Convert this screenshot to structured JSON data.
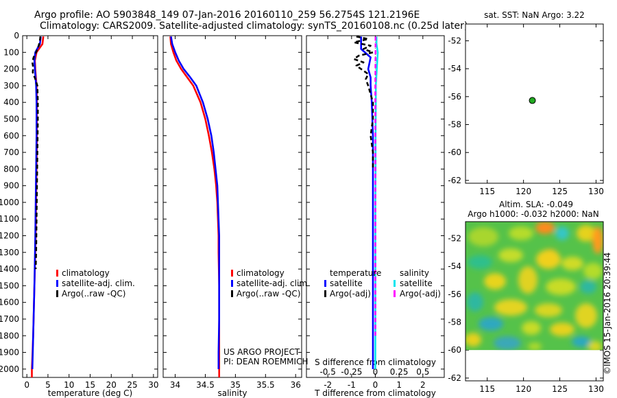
{
  "title": {
    "line1": "Argo profile: AO 5903848_149 07-Jan-2016 20160110_259 56.2754S 121.2196E",
    "line2": "Climatology: CARS2009. Satellite-adjusted climatology: synTS_20160108.nc (0.25d later)"
  },
  "watermark": "©IMOS 15-Jan-2016 20:39:44",
  "project": {
    "line1": "US ARGO PROJECT",
    "line2": "PI: DEAN ROEMMICH"
  },
  "colors": {
    "climatology": "#ff0000",
    "satellite": "#0000ff",
    "argo": "#000000",
    "salinity_satellite": "#00e5ee",
    "salinity_argo": "#ff00ff",
    "station": "#22aa22"
  },
  "depth_axis": {
    "min": 0,
    "max": 2050,
    "ticks": [
      0,
      100,
      200,
      300,
      400,
      500,
      600,
      700,
      800,
      900,
      1000,
      1100,
      1200,
      1300,
      1400,
      1500,
      1600,
      1700,
      1800,
      1900,
      2000
    ]
  },
  "chart_data": [
    {
      "name": "temperature-panel",
      "type": "line",
      "xlabel": "temperature (deg C)",
      "xlim": [
        -1,
        31
      ],
      "xticks": [
        0,
        5,
        10,
        15,
        20,
        25,
        30
      ],
      "ylim": [
        0,
        2050
      ],
      "y_inverted": true,
      "legend": {
        "position": "lower-middle",
        "entries": [
          "climatology",
          "satellite-adj. clim.",
          "Argo(..raw -QC)"
        ]
      },
      "series": [
        {
          "name": "climatology",
          "color_key": "climatology",
          "dash": false,
          "depth": [
            5,
            50,
            100,
            150,
            200,
            300,
            400,
            600,
            800,
            1000,
            1200,
            1500,
            1800,
            2000,
            2050
          ],
          "values": [
            3.9,
            3.7,
            2.3,
            1.9,
            2.0,
            2.3,
            2.4,
            2.4,
            2.3,
            2.2,
            2.1,
            1.8,
            1.5,
            1.2,
            1.2
          ]
        },
        {
          "name": "satellite-adj. clim.",
          "color_key": "satellite",
          "dash": false,
          "depth": [
            5,
            50,
            100,
            150,
            200,
            300,
            400,
            600,
            800,
            1000,
            1200,
            1500,
            1800,
            2000
          ],
          "values": [
            3.3,
            3.1,
            2.0,
            1.8,
            1.9,
            2.2,
            2.3,
            2.3,
            2.2,
            2.1,
            2.0,
            1.8,
            1.5,
            1.3
          ]
        },
        {
          "name": "Argo(..raw -QC)",
          "color_key": "argo",
          "dash": true,
          "depth": [
            5,
            30,
            60,
            100,
            130,
            160,
            190,
            220,
            260,
            300,
            400,
            500,
            700,
            900,
            1100,
            1300,
            1400
          ],
          "values": [
            3.2,
            3.1,
            2.8,
            2.2,
            1.6,
            1.3,
            1.5,
            1.4,
            2.0,
            2.5,
            2.6,
            2.6,
            2.5,
            2.4,
            2.3,
            2.2,
            2.1
          ]
        }
      ]
    },
    {
      "name": "salinity-panel",
      "type": "line",
      "xlabel": "salinity",
      "xlim": [
        33.8,
        36.1
      ],
      "xticks": [
        34,
        34.5,
        35,
        35.5,
        36
      ],
      "ylim": [
        0,
        2050
      ],
      "y_inverted": true,
      "legend": {
        "position": "lower-middle",
        "entries": [
          "climatology",
          "satellite-adj. clim.",
          "Argo(..raw -QC)"
        ]
      },
      "series": [
        {
          "name": "climatology",
          "color_key": "climatology",
          "dash": false,
          "depth": [
            5,
            50,
            100,
            150,
            200,
            250,
            300,
            400,
            500,
            600,
            700,
            800,
            900,
            1000,
            1100,
            1200,
            1300,
            1500,
            1700,
            1900,
            2050
          ],
          "values": [
            33.92,
            33.93,
            33.97,
            34.02,
            34.1,
            34.2,
            34.3,
            34.42,
            34.5,
            34.56,
            34.61,
            34.65,
            34.68,
            34.7,
            34.71,
            34.72,
            34.72,
            34.73,
            34.73,
            34.73,
            34.73
          ]
        },
        {
          "name": "satellite-adj. clim.",
          "color_key": "satellite",
          "dash": false,
          "depth": [
            5,
            50,
            100,
            150,
            200,
            250,
            300,
            400,
            500,
            600,
            700,
            800,
            900,
            1000,
            1100,
            1200,
            1300,
            1500,
            1700,
            1900,
            2000
          ],
          "values": [
            33.93,
            33.95,
            34.0,
            34.06,
            34.14,
            34.25,
            34.35,
            34.46,
            34.54,
            34.6,
            34.64,
            34.67,
            34.7,
            34.71,
            34.72,
            34.73,
            34.73,
            34.73,
            34.73,
            34.72,
            34.72
          ]
        }
      ]
    },
    {
      "name": "difference-panel",
      "type": "line",
      "xlabel": "T difference from climatology",
      "xlabel_top": "S difference from climatology",
      "xlim": [
        -2.9,
        2.9
      ],
      "xticks": [
        -2,
        -1,
        0,
        1,
        2
      ],
      "xticks_s": [
        -0.5,
        -0.25,
        0,
        0.25,
        0.5
      ],
      "ylim": [
        0,
        2050
      ],
      "y_inverted": true,
      "legend": {
        "position": "lower-middle",
        "title_temp": "temperature",
        "title_sal": "salinity",
        "entries_temp": [
          "satellite",
          "Argo(-adj)"
        ],
        "entries_sal": [
          "satellite",
          "Argo(-adj)"
        ]
      },
      "series": [
        {
          "name": "T satellite",
          "color_key": "satellite",
          "dash": false,
          "depth": [
            5,
            80,
            130,
            200,
            250,
            300,
            400,
            600,
            800,
            1000,
            1200,
            1500,
            1800,
            2000
          ],
          "values": [
            -0.6,
            -0.6,
            -0.2,
            -0.3,
            -0.2,
            -0.2,
            -0.15,
            -0.1,
            -0.1,
            -0.1,
            -0.1,
            -0.1,
            -0.1,
            -0.1
          ]
        },
        {
          "name": "T Argo(-adj)",
          "color_key": "argo",
          "dash": true,
          "depth": [
            5,
            20,
            40,
            60,
            80,
            100,
            120,
            140,
            160,
            180,
            200,
            230,
            260,
            300,
            400,
            500,
            600,
            700,
            800
          ],
          "values": [
            -0.8,
            -0.3,
            -0.9,
            -0.2,
            -0.5,
            -0.1,
            -0.7,
            -0.9,
            -0.5,
            -0.8,
            -0.6,
            -0.3,
            -0.4,
            -0.3,
            -0.1,
            -0.1,
            -0.2,
            -0.1,
            -0.1
          ]
        },
        {
          "name": "S satellite",
          "color_key": "salinity_satellite",
          "dash": false,
          "depth": [
            5,
            50,
            100,
            150,
            200,
            300,
            400,
            600,
            800,
            1000,
            1200,
            1500,
            1800,
            2000
          ],
          "values": [
            0.05,
            0.05,
            0.1,
            0.08,
            0.06,
            0.02,
            0.02,
            0.01,
            0.01,
            0.0,
            0.0,
            0.0,
            0.0,
            0.0
          ]
        },
        {
          "name": "S Argo(-adj)",
          "color_key": "salinity_argo",
          "dash": true,
          "depth": [
            5,
            100,
            300,
            1000,
            1800
          ],
          "values": [
            0.01,
            0.01,
            0.0,
            0.0,
            0.0
          ]
        }
      ]
    },
    {
      "name": "location-map",
      "type": "scatter",
      "title": "sat. SST: NaN Argo: 3.22",
      "xlim": [
        112,
        131
      ],
      "xticks": [
        115,
        120,
        125,
        130
      ],
      "ylim": [
        -62.2,
        -50.8
      ],
      "yticks": [
        -52,
        -54,
        -56,
        -58,
        -60,
        -62
      ],
      "points": [
        {
          "lon": 121.2196,
          "lat": -56.2754
        }
      ]
    },
    {
      "name": "sla-map",
      "type": "heatmap",
      "title_line1": "Altim. SLA: -0.049",
      "title_line2": "Argo h1000: -0.032 h2000: NaN",
      "xlim": [
        112,
        131
      ],
      "xticks": [
        115,
        120,
        125,
        130
      ],
      "ylim": [
        -62.2,
        -50.8
      ],
      "yticks": [
        -52,
        -54,
        -56,
        -58,
        -60,
        -62
      ],
      "data_lat_min": -60
    }
  ]
}
